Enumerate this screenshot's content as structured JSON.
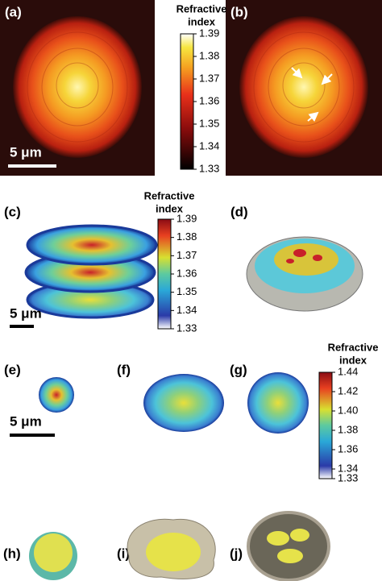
{
  "panels": [
    "(a)",
    "(b)",
    "(c)",
    "(d)",
    "(e)",
    "(f)",
    "(g)",
    "(h)",
    "(i)",
    "(j)"
  ],
  "scale_bar": "5 μm",
  "colorbars": [
    {
      "title": [
        "Refractive",
        "index"
      ],
      "lim": [
        1.33,
        1.39
      ],
      "ticks": [
        1.39,
        1.38,
        1.37,
        1.36,
        1.35,
        1.34,
        1.33
      ]
    },
    {
      "title": [
        "Refractive",
        "index"
      ],
      "lim": [
        1.33,
        1.39
      ],
      "ticks": [
        1.39,
        1.38,
        1.37,
        1.36,
        1.35,
        1.34,
        1.33
      ]
    },
    {
      "title": [
        "Refractive",
        "index"
      ],
      "lim": [
        1.33,
        1.44
      ],
      "ticks": [
        1.44,
        1.42,
        {
          "value": 1.4,
          "label": "1.40"
        },
        1.38,
        1.36,
        1.34,
        1.33
      ]
    }
  ]
}
